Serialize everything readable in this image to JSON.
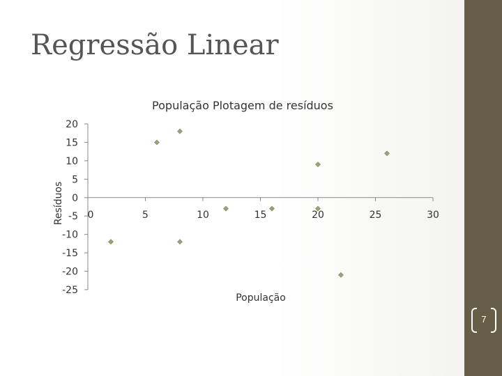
{
  "slide": {
    "title": "Regressão Linear",
    "page_number": "7"
  },
  "colors": {
    "sidebar": "#675e48",
    "marker": "#9ba37a"
  },
  "chart_data": {
    "type": "scatter",
    "title": "População Plotagem de resíduos",
    "xlabel": "População",
    "ylabel": "Resíduos",
    "xlim": [
      0,
      30
    ],
    "ylim": [
      -25,
      20
    ],
    "x_ticks": [
      "0",
      "5",
      "10",
      "15",
      "20",
      "25",
      "30"
    ],
    "y_ticks": [
      "20",
      "15",
      "10",
      "5",
      "0",
      "-5",
      "-10",
      "-15",
      "-20",
      "-25"
    ],
    "grid": false,
    "legend": "none",
    "points": [
      {
        "x": 2,
        "y": -12
      },
      {
        "x": 6,
        "y": 15
      },
      {
        "x": 8,
        "y": 18
      },
      {
        "x": 8,
        "y": -12
      },
      {
        "x": 12,
        "y": -3
      },
      {
        "x": 16,
        "y": -3
      },
      {
        "x": 20,
        "y": 9
      },
      {
        "x": 20,
        "y": -3
      },
      {
        "x": 22,
        "y": -21
      },
      {
        "x": 26,
        "y": 12
      }
    ]
  }
}
